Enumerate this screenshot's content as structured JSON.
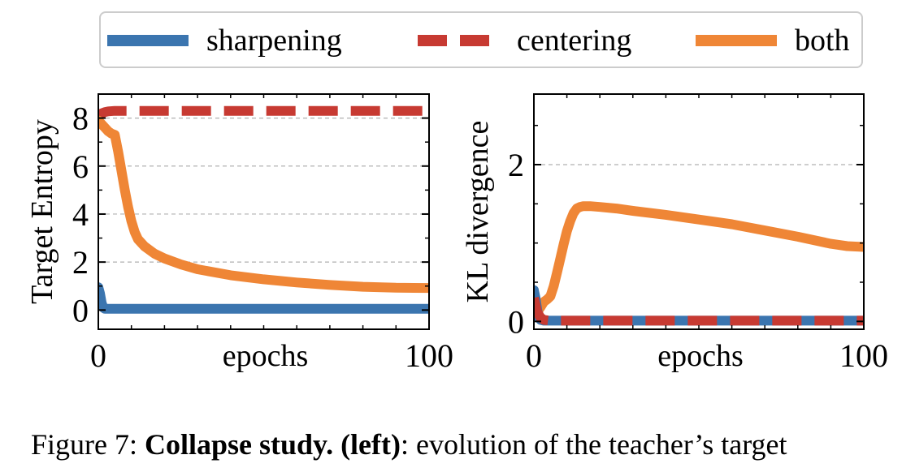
{
  "legend": {
    "items": [
      {
        "label": "sharpening",
        "color": "#3b75af",
        "style": "solid"
      },
      {
        "label": "centering",
        "color": "#c73a32",
        "style": "dashed"
      },
      {
        "label": "both",
        "color": "#ef8636",
        "style": "solid"
      }
    ]
  },
  "caption": {
    "prefix": "Figure 7: ",
    "bold": "Collapse study. (left)",
    "rest": ": evolution of the teacher’s target"
  },
  "chart_data": [
    {
      "type": "line",
      "xlabel": "epochs",
      "ylabel": "Target Entropy",
      "xlim": [
        0,
        100
      ],
      "ylim": [
        -0.8,
        9
      ],
      "xticks": [
        0,
        100
      ],
      "xtick_labels": [
        "0",
        "100"
      ],
      "yticks": [
        0,
        2,
        4,
        6,
        8
      ],
      "ytick_labels": [
        "0",
        "2",
        "4",
        "6",
        "8"
      ],
      "grid": [
        2,
        4,
        6,
        8
      ],
      "series": [
        {
          "name": "sharpening",
          "x": [
            0,
            0.5,
            1,
            1.5,
            2,
            100
          ],
          "values": [
            0.95,
            0.7,
            0.3,
            0.1,
            0.05,
            0.05
          ]
        },
        {
          "name": "centering",
          "x": [
            0,
            1,
            2,
            3,
            5,
            10,
            100
          ],
          "values": [
            8.1,
            8.2,
            8.25,
            8.28,
            8.3,
            8.3,
            8.3
          ]
        },
        {
          "name": "both",
          "x": [
            0,
            2,
            3,
            4,
            5,
            6,
            7,
            8,
            9,
            10,
            11,
            12,
            14,
            17,
            20,
            25,
            30,
            40,
            50,
            60,
            70,
            80,
            90,
            100
          ],
          "values": [
            7.9,
            7.6,
            7.45,
            7.35,
            7.3,
            6.6,
            5.8,
            5.0,
            4.3,
            3.7,
            3.25,
            2.95,
            2.65,
            2.35,
            2.15,
            1.9,
            1.7,
            1.45,
            1.28,
            1.15,
            1.05,
            0.97,
            0.93,
            0.92
          ]
        }
      ]
    },
    {
      "type": "line",
      "xlabel": "epochs",
      "ylabel": "KL divergence",
      "xlim": [
        0,
        100
      ],
      "ylim": [
        -0.1,
        2.9
      ],
      "xticks": [
        0,
        100
      ],
      "xtick_labels": [
        "0",
        "100"
      ],
      "yticks": [
        0,
        2
      ],
      "ytick_labels": [
        "0",
        "2"
      ],
      "minor_yticks": [
        1
      ],
      "grid": [
        2
      ],
      "series": [
        {
          "name": "sharpening",
          "x": [
            0,
            0.5,
            1,
            1.5,
            2,
            3,
            100
          ],
          "values": [
            0.4,
            0.3,
            0.15,
            0.05,
            0.02,
            0.01,
            0.01
          ]
        },
        {
          "name": "centering",
          "x": [
            0,
            1,
            2,
            3,
            5,
            100
          ],
          "values": [
            0.3,
            0.12,
            0.05,
            0.02,
            0.01,
            0.01
          ]
        },
        {
          "name": "both",
          "x": [
            0,
            1,
            2,
            3,
            4,
            5,
            6,
            7,
            8,
            9,
            10,
            11,
            12,
            13,
            14,
            15,
            17,
            20,
            25,
            30,
            40,
            50,
            60,
            70,
            80,
            90,
            95,
            100
          ],
          "values": [
            0.08,
            0.12,
            0.18,
            0.25,
            0.28,
            0.32,
            0.45,
            0.62,
            0.8,
            0.98,
            1.15,
            1.28,
            1.38,
            1.44,
            1.46,
            1.47,
            1.47,
            1.46,
            1.44,
            1.41,
            1.36,
            1.3,
            1.24,
            1.16,
            1.08,
            0.99,
            0.96,
            0.95
          ]
        }
      ]
    }
  ]
}
